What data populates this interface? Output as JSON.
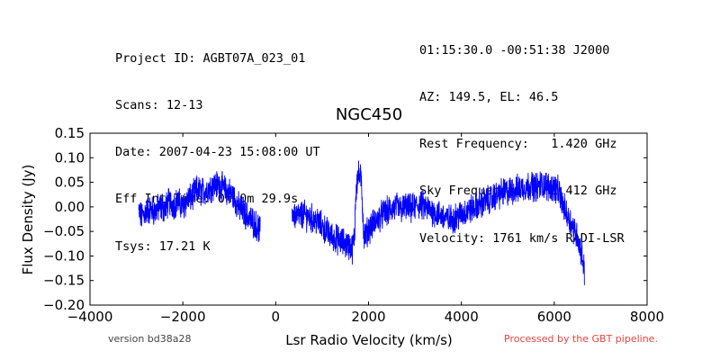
{
  "header": {
    "left": [
      "Project ID: AGBT07A_023_01",
      "Scans: 12-13",
      "Date: 2007-04-23 15:08:00 UT",
      "Eff Int Time: 0h 0m 29.9s",
      "Tsys: 17.21 K"
    ],
    "right": [
      "01:15:30.0 -00:51:38 J2000",
      "AZ: 149.5, EL: 46.5",
      "Rest Frequency:   1.420 GHz",
      "Sky Frequency:    1.412 GHz",
      "Velocity: 1761 km/s RADI-LSR"
    ]
  },
  "footer": {
    "version": "version bd38a28",
    "processed": "Processed by the GBT pipeline."
  },
  "chart_data": {
    "type": "line",
    "title": "NGC450",
    "xlabel": "Lsr Radio Velocity (km/s)",
    "ylabel": "Flux Density (Jy)",
    "xlim": [
      -4000,
      8000
    ],
    "ylim": [
      -0.2,
      0.15
    ],
    "xticks": [
      -4000,
      -2000,
      0,
      2000,
      4000,
      6000,
      8000
    ],
    "xtick_labels": [
      "−4000",
      "−2000",
      "0",
      "2000",
      "4000",
      "6000",
      "8000"
    ],
    "yticks": [
      -0.2,
      -0.15,
      -0.1,
      -0.05,
      0.0,
      0.05,
      0.1,
      0.15
    ],
    "ytick_labels": [
      "−0.20",
      "−0.15",
      "−0.10",
      "−0.05",
      "0.00",
      "0.05",
      "0.10",
      "0.15"
    ],
    "line_color": "#0000ff",
    "grid": false,
    "series": [
      {
        "segments": [
          {
            "x": [
              -2950,
              -2900,
              -2800,
              -2700,
              -2600,
              -2500,
              -2400,
              -2300,
              -2200,
              -2100,
              -2000,
              -1900,
              -1800,
              -1700,
              -1600,
              -1500,
              -1400,
              -1300,
              -1200,
              -1100,
              -1000,
              -900,
              -800,
              -700,
              -600,
              -500,
              -400,
              -330
            ],
            "y": [
              -0.01,
              -0.02,
              -0.01,
              -0.005,
              -0.01,
              0.0,
              -0.005,
              0.01,
              0.005,
              0.01,
              0.0,
              0.015,
              0.02,
              0.035,
              0.03,
              0.035,
              0.04,
              0.045,
              0.045,
              0.035,
              0.03,
              0.02,
              0.0,
              -0.01,
              -0.02,
              -0.03,
              -0.04,
              -0.05
            ]
          },
          {
            "x": [
              350,
              400,
              500,
              600,
              700,
              800,
              900,
              1000,
              1100,
              1200,
              1300,
              1400,
              1500,
              1600,
              1650,
              1700,
              1720,
              1760,
              1800,
              1850,
              1870,
              1900,
              1950,
              2000,
              2100,
              2200,
              2300,
              2400,
              2500,
              2600,
              2700,
              2800,
              2900,
              3000,
              3100,
              3200,
              3300,
              3400,
              3500,
              3600,
              3700,
              3800,
              3900,
              4000,
              4100,
              4200,
              4300,
              4400,
              4500,
              4600,
              4700,
              4800,
              4900,
              5000,
              5100,
              5200,
              5300,
              5400,
              5500,
              5600,
              5700,
              5800,
              5900,
              6000,
              6100,
              6200,
              6300,
              6400,
              6500,
              6550,
              6600,
              6650
            ],
            "y": [
              -0.01,
              -0.015,
              -0.02,
              -0.015,
              -0.02,
              -0.025,
              -0.03,
              -0.04,
              -0.05,
              -0.06,
              -0.065,
              -0.07,
              -0.075,
              -0.08,
              -0.085,
              -0.06,
              0.02,
              0.06,
              0.065,
              0.05,
              0.0,
              -0.06,
              -0.055,
              -0.045,
              -0.035,
              -0.025,
              -0.015,
              -0.01,
              -0.005,
              0.0,
              -0.005,
              0.0,
              -0.005,
              0.0,
              0.005,
              0.0,
              -0.005,
              -0.01,
              -0.015,
              -0.02,
              -0.025,
              -0.025,
              -0.02,
              -0.015,
              -0.01,
              -0.005,
              0.0,
              0.005,
              0.01,
              0.015,
              0.02,
              0.025,
              0.03,
              0.03,
              0.035,
              0.035,
              0.04,
              0.04,
              0.045,
              0.04,
              0.045,
              0.045,
              0.04,
              0.04,
              0.03,
              0.0,
              -0.02,
              -0.04,
              -0.06,
              -0.08,
              -0.1,
              -0.13
            ]
          }
        ]
      }
    ]
  }
}
